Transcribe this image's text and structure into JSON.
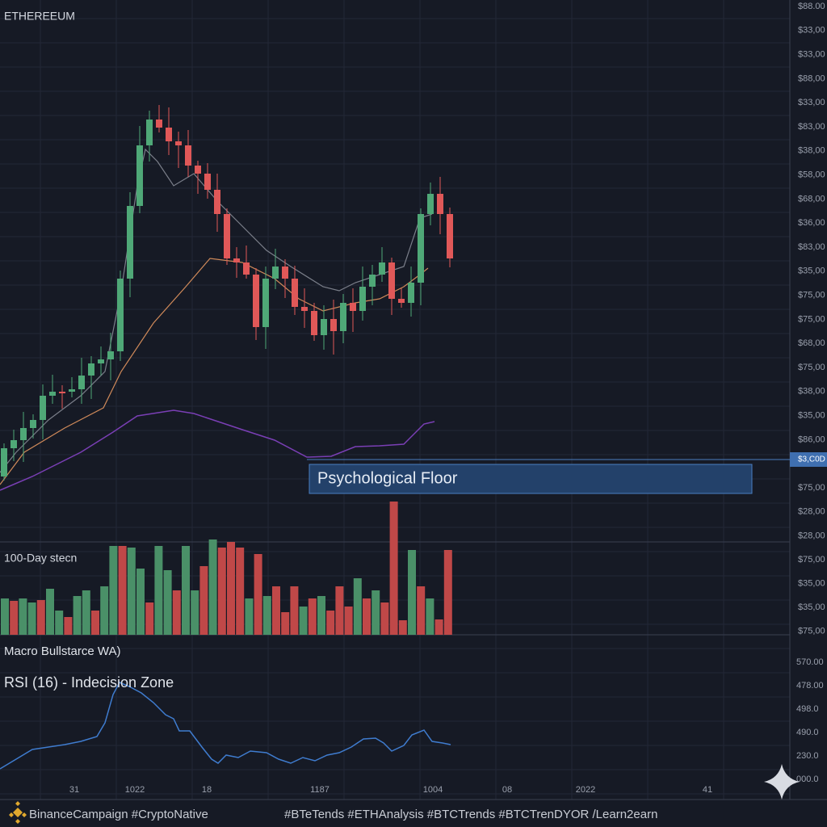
{
  "header": {
    "title": "ETHEREEUM"
  },
  "price_axis": [
    "$88.00",
    "$33,00",
    "$33,00",
    "$88,00",
    "$33,00",
    "$83,00",
    "$38,00",
    "$58,00",
    "$68,00",
    "$36,00",
    "$83,00",
    "$35,00",
    "$75,00",
    "$75,00",
    "$68,00",
    "$75,00",
    "$38,00",
    "$35,00",
    "$86,00",
    "$75,00",
    "$28,00",
    "$28,00"
  ],
  "current_price_tag": "$3,C0D",
  "annotation": "Psychological Floor",
  "volume_panel": {
    "label": "100-Day stecn",
    "axis": [
      "$75,00",
      "$35,00",
      "$35,00",
      "$75,00"
    ]
  },
  "rsi_panel": {
    "label": "Macro Bullstarce WA)",
    "title": "RSI (16) - Indecision Zone",
    "axis": [
      "570.00",
      "478.00",
      "498.0",
      "490.0",
      "230.0",
      "000.0"
    ]
  },
  "x_axis": [
    "31",
    "1022",
    "18",
    "1187",
    "1004",
    "08",
    "2022",
    "41"
  ],
  "footer": {
    "left": "BinanceCampaign #CryptoNative",
    "right": "#BTeTends #ETHAnalysis #BTCTrends #BTCTrenDYOR /Learn2earn"
  }
}
